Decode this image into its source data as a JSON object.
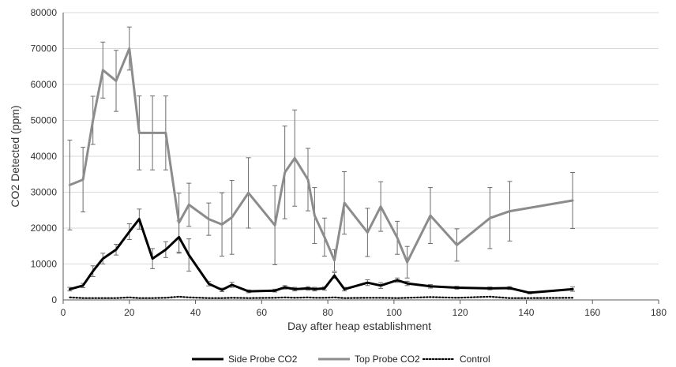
{
  "chart_data": {
    "type": "line",
    "xlabel": "Day after heap establishment",
    "ylabel": "CO2 Detected (ppm)",
    "xlim": [
      0,
      180
    ],
    "ylim": [
      0,
      80000
    ],
    "x_ticks": [
      0,
      20,
      40,
      60,
      80,
      100,
      120,
      140,
      160,
      180
    ],
    "y_ticks": [
      0,
      10000,
      20000,
      30000,
      40000,
      50000,
      60000,
      70000,
      80000
    ],
    "grid": "horizontal",
    "legend_position": "bottom",
    "series": [
      {
        "name": "Side Probe CO2",
        "color": "#000000",
        "style": "solid",
        "x": [
          2,
          6,
          9,
          12,
          16,
          20,
          23,
          27,
          31,
          35,
          38,
          44,
          48,
          51,
          56,
          64,
          67,
          70,
          74,
          76,
          79,
          82,
          85,
          92,
          96,
          101,
          104,
          111,
          119,
          129,
          135,
          141,
          154
        ],
        "y": [
          3000,
          4000,
          8000,
          11500,
          14000,
          19000,
          22500,
          11500,
          14000,
          17500,
          12500,
          4500,
          2800,
          4200,
          2400,
          2600,
          3500,
          3000,
          3200,
          3000,
          3200,
          6800,
          3000,
          4800,
          4000,
          5500,
          4600,
          3800,
          3400,
          3200,
          3300,
          2000,
          3000
        ],
        "errors": [
          500,
          600,
          1500,
          1500,
          1500,
          2200,
          2800,
          2800,
          2200,
          4500,
          4500,
          600,
          500,
          700,
          400,
          400,
          500,
          500,
          500,
          500,
          500,
          800,
          500,
          800,
          800,
          600,
          600,
          500,
          400,
          400,
          400,
          300,
          600
        ]
      },
      {
        "name": "Top Probe CO2",
        "color": "#8c8c8c",
        "style": "solid",
        "x": [
          2,
          6,
          9,
          12,
          16,
          20,
          23,
          27,
          31,
          35,
          38,
          44,
          48,
          51,
          56,
          64,
          67,
          70,
          74,
          76,
          79,
          82,
          85,
          92,
          96,
          101,
          104,
          111,
          119,
          129,
          135,
          154
        ],
        "y": [
          32000,
          33500,
          50000,
          64000,
          61000,
          70000,
          46500,
          46500,
          46500,
          21500,
          26500,
          22500,
          21000,
          23000,
          29800,
          20800,
          35500,
          39500,
          33500,
          23500,
          17500,
          11000,
          27000,
          18800,
          26000,
          17300,
          10500,
          23500,
          15300,
          22800,
          24700,
          27700
        ],
        "errors": [
          12500,
          9000,
          6700,
          7800,
          8500,
          6000,
          10300,
          10300,
          10300,
          8200,
          6000,
          4500,
          8800,
          10300,
          9800,
          11000,
          12900,
          13400,
          8700,
          7800,
          5300,
          3000,
          8700,
          6700,
          6900,
          4600,
          4400,
          7800,
          4500,
          8500,
          8300,
          7800
        ]
      },
      {
        "name": "Control",
        "color": "#000000",
        "style": "dotted",
        "x": [
          2,
          6,
          9,
          12,
          16,
          20,
          23,
          27,
          31,
          35,
          38,
          44,
          48,
          51,
          56,
          64,
          67,
          70,
          74,
          76,
          79,
          82,
          85,
          92,
          96,
          101,
          104,
          111,
          119,
          129,
          135,
          141,
          154
        ],
        "y": [
          700,
          500,
          500,
          500,
          500,
          700,
          500,
          500,
          600,
          900,
          700,
          500,
          500,
          600,
          500,
          600,
          700,
          600,
          700,
          600,
          600,
          700,
          500,
          600,
          600,
          500,
          600,
          800,
          600,
          900,
          500,
          500,
          600
        ],
        "errors": []
      }
    ]
  }
}
